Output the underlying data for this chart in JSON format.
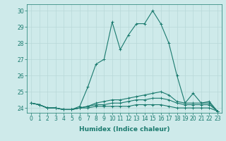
{
  "xlabel": "Humidex (Indice chaleur)",
  "x": [
    0,
    1,
    2,
    3,
    4,
    5,
    6,
    7,
    8,
    9,
    10,
    11,
    12,
    13,
    14,
    15,
    16,
    17,
    18,
    19,
    20,
    21,
    22,
    23
  ],
  "series": [
    [
      24.3,
      24.2,
      24.0,
      24.0,
      23.9,
      23.9,
      24.1,
      25.3,
      26.7,
      27.0,
      29.3,
      27.6,
      28.5,
      29.2,
      29.2,
      30.0,
      29.2,
      28.0,
      26.0,
      24.3,
      24.9,
      24.3,
      24.4,
      23.8
    ],
    [
      24.3,
      24.2,
      24.0,
      24.0,
      23.9,
      23.9,
      24.0,
      24.1,
      24.3,
      24.4,
      24.5,
      24.5,
      24.6,
      24.7,
      24.8,
      24.9,
      25.0,
      24.8,
      24.4,
      24.3,
      24.3,
      24.3,
      24.3,
      23.8
    ],
    [
      24.3,
      24.2,
      24.0,
      24.0,
      23.9,
      23.9,
      24.0,
      24.1,
      24.2,
      24.2,
      24.3,
      24.3,
      24.4,
      24.5,
      24.5,
      24.6,
      24.6,
      24.5,
      24.3,
      24.2,
      24.2,
      24.2,
      24.2,
      23.8
    ],
    [
      24.3,
      24.2,
      24.0,
      24.0,
      23.9,
      23.9,
      24.0,
      24.0,
      24.1,
      24.1,
      24.1,
      24.1,
      24.1,
      24.2,
      24.2,
      24.2,
      24.2,
      24.1,
      24.0,
      24.0,
      24.0,
      24.0,
      24.0,
      23.8
    ]
  ],
  "line_color": "#1a7a6e",
  "marker": "+",
  "markersize": 3,
  "linewidth": 0.8,
  "bg_color": "#ceeaea",
  "grid_color": "#b8d8d8",
  "xlim": [
    -0.5,
    23.5
  ],
  "ylim": [
    23.7,
    30.4
  ],
  "yticks": [
    24,
    25,
    26,
    27,
    28,
    29,
    30
  ],
  "xticks": [
    0,
    1,
    2,
    3,
    4,
    5,
    6,
    7,
    8,
    9,
    10,
    11,
    12,
    13,
    14,
    15,
    16,
    17,
    18,
    19,
    20,
    21,
    22,
    23
  ],
  "tick_fontsize": 5.5,
  "xlabel_fontsize": 6.5
}
